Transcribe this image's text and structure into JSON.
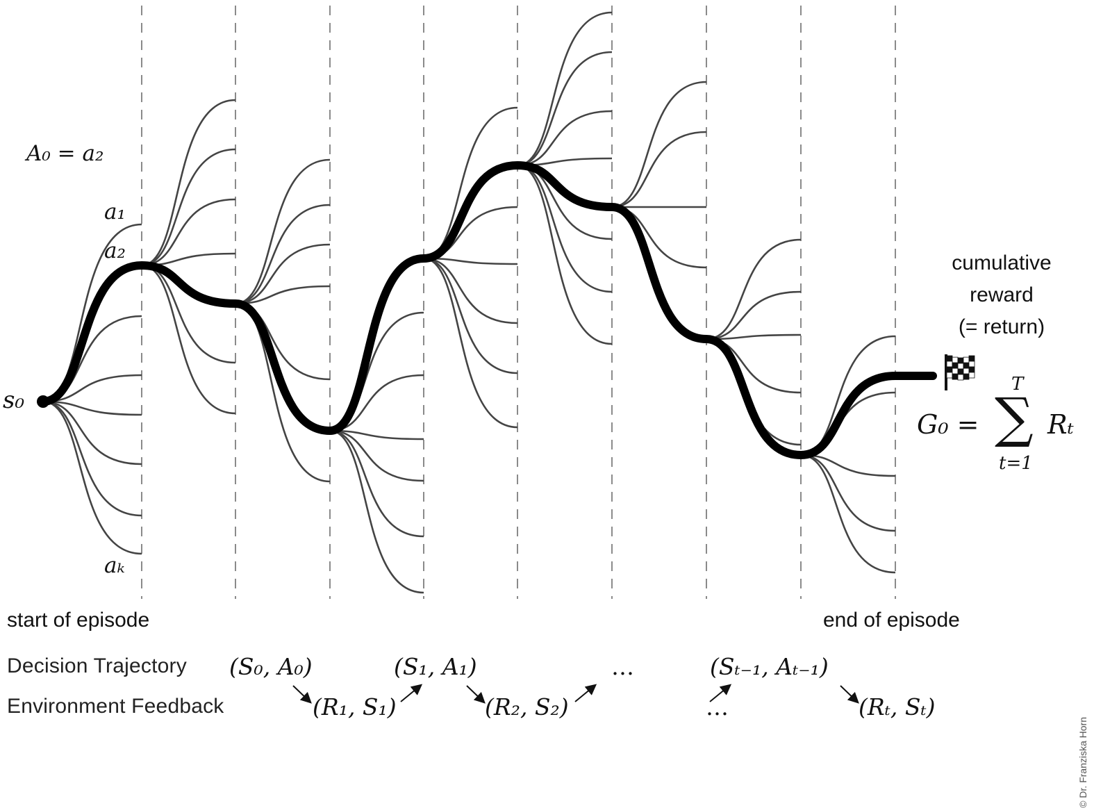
{
  "initial_state": "s₀",
  "chosen_action": "A₀ = a₂",
  "actions": {
    "first": "a₁",
    "second": "a₂",
    "last": "aₖ"
  },
  "return": {
    "caption_line1": "cumulative",
    "caption_line2": "reward",
    "caption_line3": "(= return)",
    "lhs": "G₀ =",
    "sum_symbol": "∑",
    "sum_upper": "T",
    "sum_lower": "t=1",
    "rhs": "Rₜ"
  },
  "phase_labels": {
    "start": "start of episode",
    "end": "end of episode"
  },
  "rows": {
    "decision": {
      "label": "Decision Trajectory",
      "items": [
        "(S₀, A₀)",
        "(S₁, A₁)",
        "…",
        "(Sₜ₋₁, Aₜ₋₁)"
      ]
    },
    "feedback": {
      "label": "Environment Feedback",
      "items": [
        "(R₁, S₁)",
        "(R₂, S₂)",
        "…",
        "(Rₜ, Sₜ)"
      ]
    }
  },
  "credit": "© Dr. Franziska Horn",
  "colors": {
    "trajectory": "#000000",
    "branches": "#444444",
    "dividers": "#8a8a8a"
  }
}
